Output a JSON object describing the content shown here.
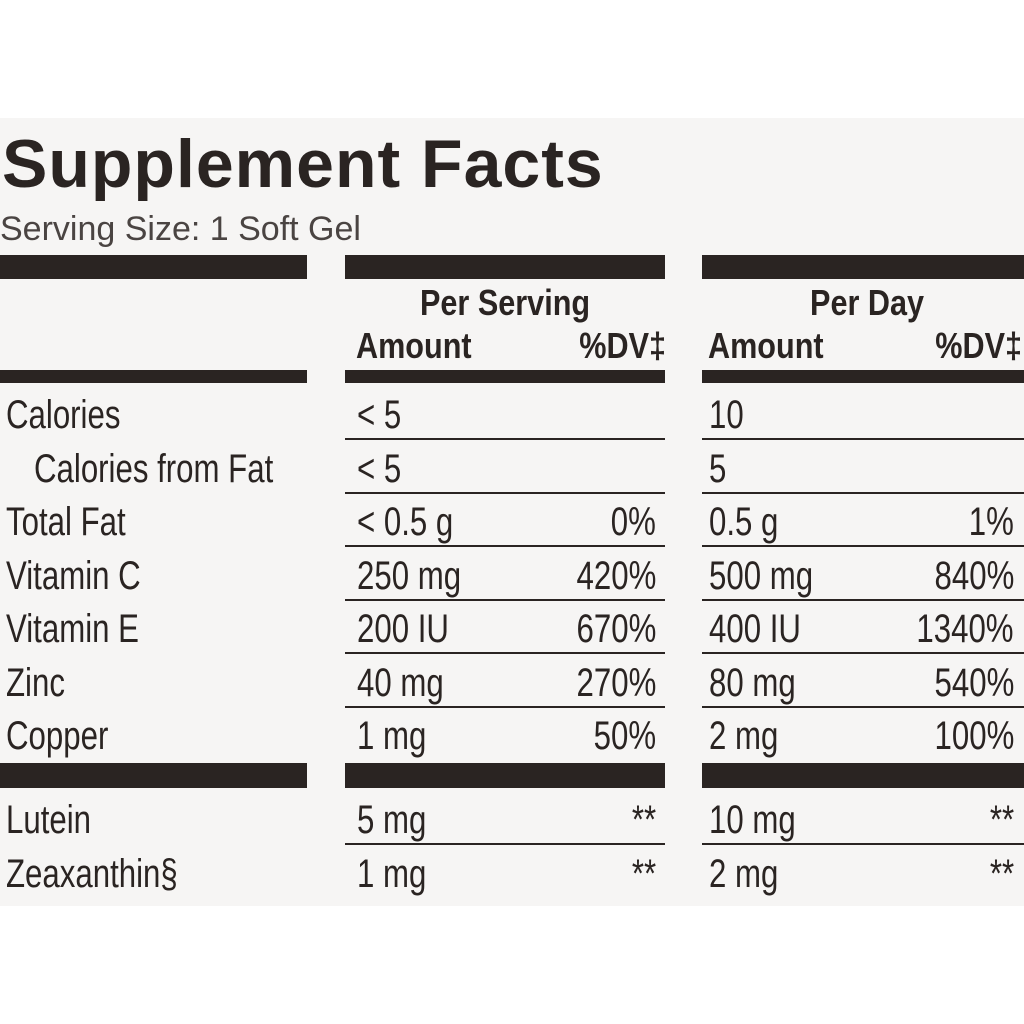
{
  "title": "Supplement Facts",
  "serving_size": "Serving Size: 1 Soft Gel",
  "header": {
    "per_serving": "Per Serving",
    "per_day": "Per Day",
    "serving_amount": "Amount",
    "serving_dv": "%DV‡",
    "day_amount": "Amount",
    "day_dv": "%DV‡"
  },
  "rows": [
    {
      "name": "Calories",
      "serving_amount": "< 5",
      "day_amount": "10"
    },
    {
      "name": "Calories from Fat",
      "serving_amount": "< 5",
      "day_amount": "5"
    },
    {
      "name": "Total Fat",
      "serving_amount": "< 0.5 g",
      "serving_dv": "0%",
      "day_amount": "0.5 g",
      "day_dv": "1%"
    },
    {
      "name": "Vitamin C",
      "serving_amount": "250 mg",
      "serving_dv": "420%",
      "day_amount": "500 mg",
      "day_dv": "840%"
    },
    {
      "name": "Vitamin E",
      "serving_amount": "200 IU",
      "serving_dv": "670%",
      "day_amount": "400 IU",
      "day_dv": "1340%"
    },
    {
      "name": "Zinc",
      "serving_amount": "40 mg",
      "serving_dv": "270%",
      "day_amount": "80 mg",
      "day_dv": "540%"
    },
    {
      "name": "Copper",
      "serving_amount": "1 mg",
      "serving_dv": "50%",
      "day_amount": "2 mg",
      "day_dv": "100%"
    }
  ],
  "other_rows": [
    {
      "name": "Lutein",
      "serving_amount": "5 mg",
      "serving_dv": "**",
      "day_amount": "10 mg",
      "day_dv": "**"
    },
    {
      "name": "Zeaxanthin§",
      "serving_amount": "1 mg",
      "serving_dv": "**",
      "day_amount": "2 mg",
      "day_dv": "**"
    }
  ]
}
